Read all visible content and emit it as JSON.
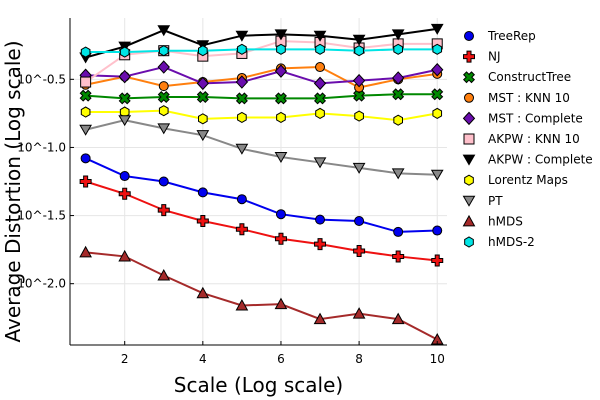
{
  "chart_data": {
    "type": "line",
    "title": "",
    "xlabel": "Scale (Log scale)",
    "ylabel": "Average Distortion (Log scale)",
    "xlim": [
      0.6,
      10.25
    ],
    "ylim": [
      -2.45,
      -0.05
    ],
    "xticks": [
      2,
      4,
      6,
      8,
      10
    ],
    "xtick_labels": [
      "2",
      "4",
      "6",
      "8",
      "10"
    ],
    "yticks": [
      -0.5,
      -1.0,
      -1.5,
      -2.0
    ],
    "ytick_labels": [
      "10^-0.5",
      "10^-1.0",
      "10^-1.5",
      "10^-2.0"
    ],
    "grid": true,
    "legend_position": "right",
    "x": [
      1,
      2,
      3,
      4,
      5,
      6,
      7,
      8,
      9,
      10
    ],
    "series": [
      {
        "name": "TreeRep",
        "color": "#0000ee",
        "marker": "circle",
        "values": [
          -1.08,
          -1.21,
          -1.25,
          -1.33,
          -1.38,
          -1.49,
          -1.53,
          -1.54,
          -1.62,
          -1.61
        ]
      },
      {
        "name": "NJ",
        "color": "#ee1111",
        "marker": "plus",
        "values": [
          -1.25,
          -1.34,
          -1.46,
          -1.54,
          -1.6,
          -1.67,
          -1.71,
          -1.76,
          -1.8,
          -1.83
        ]
      },
      {
        "name": "ConstructTree",
        "color": "#008800",
        "marker": "x",
        "values": [
          -0.62,
          -0.64,
          -0.63,
          -0.63,
          -0.64,
          -0.64,
          -0.64,
          -0.62,
          -0.61,
          -0.61
        ]
      },
      {
        "name": "MST : KNN 10",
        "color": "#ff7f0e",
        "marker": "circle",
        "values": [
          -0.54,
          -0.48,
          -0.55,
          -0.52,
          -0.49,
          -0.42,
          -0.41,
          -0.56,
          -0.5,
          -0.46
        ]
      },
      {
        "name": "MST : Complete",
        "color": "#6a0dad",
        "marker": "diamond",
        "values": [
          -0.47,
          -0.48,
          -0.41,
          -0.53,
          -0.52,
          -0.44,
          -0.53,
          -0.51,
          -0.49,
          -0.43
        ]
      },
      {
        "name": "AKPW : KNN 10",
        "color": "#ffc0cb",
        "marker": "square",
        "values": [
          -0.52,
          -0.32,
          -0.29,
          -0.33,
          -0.31,
          -0.22,
          -0.23,
          -0.27,
          -0.24,
          -0.24
        ]
      },
      {
        "name": "AKPW : Complete",
        "color": "#000000",
        "marker": "triangle-down",
        "values": [
          -0.34,
          -0.26,
          -0.14,
          -0.25,
          -0.18,
          -0.17,
          -0.18,
          -0.21,
          -0.17,
          -0.13
        ]
      },
      {
        "name": "Lorentz Maps",
        "color": "#ffff00",
        "marker": "hexagon",
        "values": [
          -0.74,
          -0.74,
          -0.73,
          -0.79,
          -0.78,
          -0.78,
          -0.75,
          -0.77,
          -0.8,
          -0.75
        ]
      },
      {
        "name": "PT",
        "color": "#888888",
        "marker": "triangle-down",
        "values": [
          -0.87,
          -0.8,
          -0.86,
          -0.91,
          -1.01,
          -1.07,
          -1.11,
          -1.15,
          -1.19,
          -1.2
        ]
      },
      {
        "name": "hMDS",
        "color": "#a52a2a",
        "marker": "triangle-up",
        "values": [
          -1.77,
          -1.8,
          -1.94,
          -2.07,
          -2.16,
          -2.15,
          -2.26,
          -2.22,
          -2.26,
          -2.41
        ]
      },
      {
        "name": "hMDS-2",
        "color": "#00e5e5",
        "marker": "hexagon",
        "values": [
          -0.3,
          -0.3,
          -0.29,
          -0.29,
          -0.28,
          -0.28,
          -0.28,
          -0.29,
          -0.28,
          -0.28
        ]
      }
    ]
  }
}
